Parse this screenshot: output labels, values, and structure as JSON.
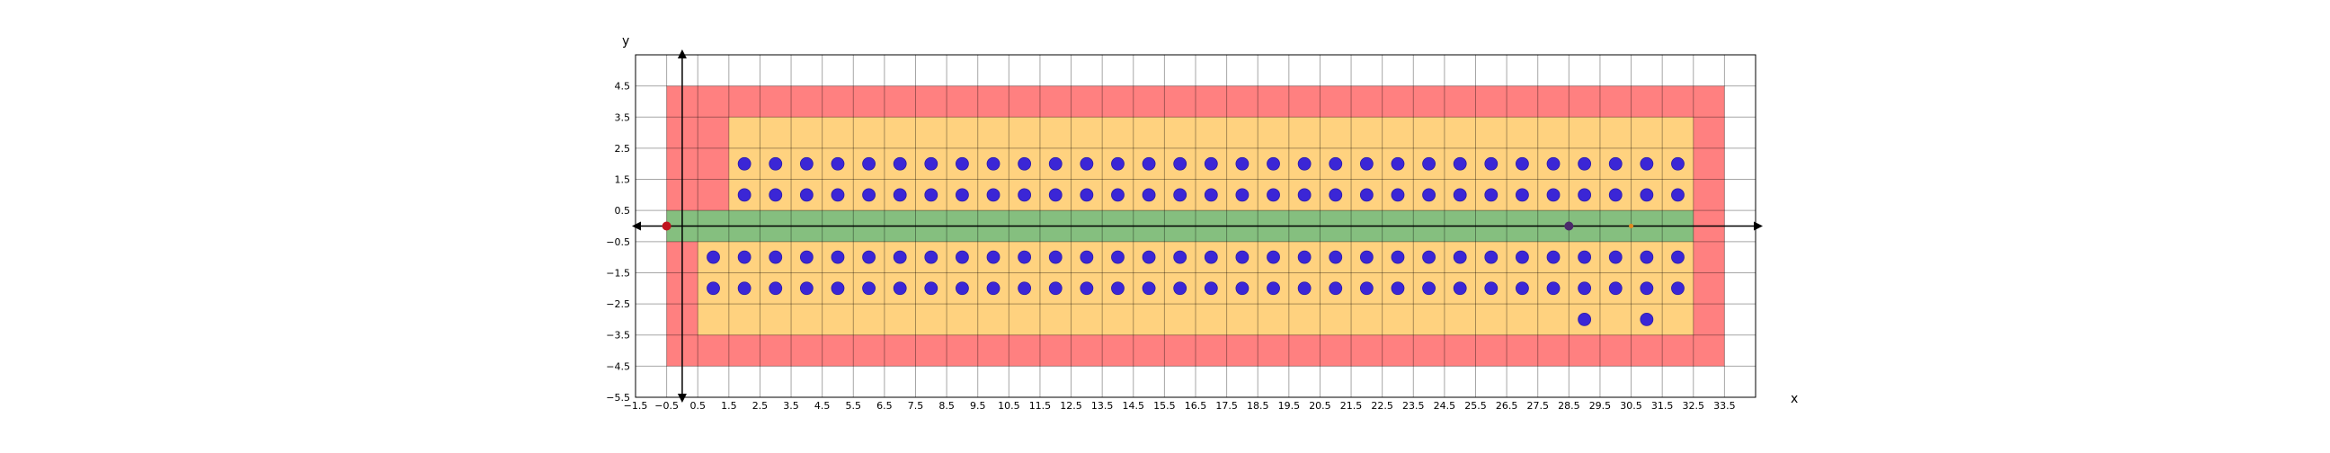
{
  "chart_data": {
    "type": "scatter",
    "title": "",
    "xlabel": "x",
    "ylabel": "y",
    "xlim": [
      -1.5,
      34.5
    ],
    "ylim": [
      -5.5,
      5.5
    ],
    "grid": true,
    "x_ticks": [
      -1.5,
      -0.5,
      0.5,
      1.5,
      2.5,
      3.5,
      4.5,
      5.5,
      6.5,
      7.5,
      8.5,
      9.5,
      10.5,
      11.5,
      12.5,
      13.5,
      14.5,
      15.5,
      16.5,
      17.5,
      18.5,
      19.5,
      20.5,
      21.5,
      22.5,
      23.5,
      24.5,
      25.5,
      26.5,
      27.5,
      28.5,
      29.5,
      30.5,
      31.5,
      32.5,
      33.5
    ],
    "x_tick_labels": [
      "−1.5",
      "−0.5",
      "0.5",
      "1.5",
      "2.5",
      "3.5",
      "4.5",
      "5.5",
      "6.5",
      "7.5",
      "8.5",
      "9.5",
      "10.5",
      "11.5",
      "12.5",
      "13.5",
      "14.5",
      "15.5",
      "16.5",
      "17.5",
      "18.5",
      "19.5",
      "20.5",
      "21.5",
      "22.5",
      "23.5",
      "24.5",
      "25.5",
      "26.5",
      "27.5",
      "28.5",
      "29.5",
      "30.5",
      "31.5",
      "32.5",
      "33.5"
    ],
    "y_ticks": [
      4.5,
      3.5,
      2.5,
      1.5,
      0.5,
      -0.5,
      -1.5,
      -2.5,
      -3.5,
      -4.5,
      -5.5
    ],
    "y_tick_labels": [
      "4.5",
      "3.5",
      "2.5",
      "1.5",
      "0.5",
      "−0.5",
      "−1.5",
      "−2.5",
      "−3.5",
      "−4.5",
      "−5.5"
    ],
    "regions": [
      {
        "name": "red-zone",
        "color": "#ff8080",
        "x": [
          -0.5,
          33.5
        ],
        "y": [
          -4.5,
          4.5
        ]
      },
      {
        "name": "orange-zone-upper",
        "color": "#ffd27f",
        "x": [
          1.5,
          32.5
        ],
        "y": [
          0.5,
          3.5
        ]
      },
      {
        "name": "orange-zone-lower",
        "color": "#ffd27f",
        "x": [
          0.5,
          32.5
        ],
        "y": [
          -3.5,
          -0.5
        ]
      },
      {
        "name": "green-zone",
        "color": "#85bf7f",
        "x": [
          -0.5,
          32.5
        ],
        "y": [
          -0.5,
          0.5
        ]
      }
    ],
    "series": [
      {
        "name": "row-y2",
        "color": "#3b26d6",
        "y": 2,
        "x_start": 2,
        "x_end": 32
      },
      {
        "name": "row-y1",
        "color": "#3b26d6",
        "y": 1,
        "x_start": 2,
        "x_end": 32
      },
      {
        "name": "row-y-1",
        "color": "#3b26d6",
        "y": -1,
        "x_start": 1,
        "x_end": 32
      },
      {
        "name": "row-y-2",
        "color": "#3b26d6",
        "y": -2,
        "x_start": 1,
        "x_end": 32
      },
      {
        "name": "row-y-3",
        "color": "#3b26d6",
        "points": [
          [
            29,
            -3
          ],
          [
            31,
            -3
          ]
        ]
      }
    ],
    "markers": [
      {
        "name": "start-point",
        "x": -0.5,
        "y": 0,
        "color": "#c0141e",
        "size": 5
      },
      {
        "name": "robot-point",
        "x": 28.5,
        "y": 0,
        "color": "#4b2a6b",
        "size": 5
      },
      {
        "name": "goal-point",
        "x": 30.5,
        "y": 0,
        "color": "#e08a1e",
        "size": 2.5
      }
    ]
  }
}
